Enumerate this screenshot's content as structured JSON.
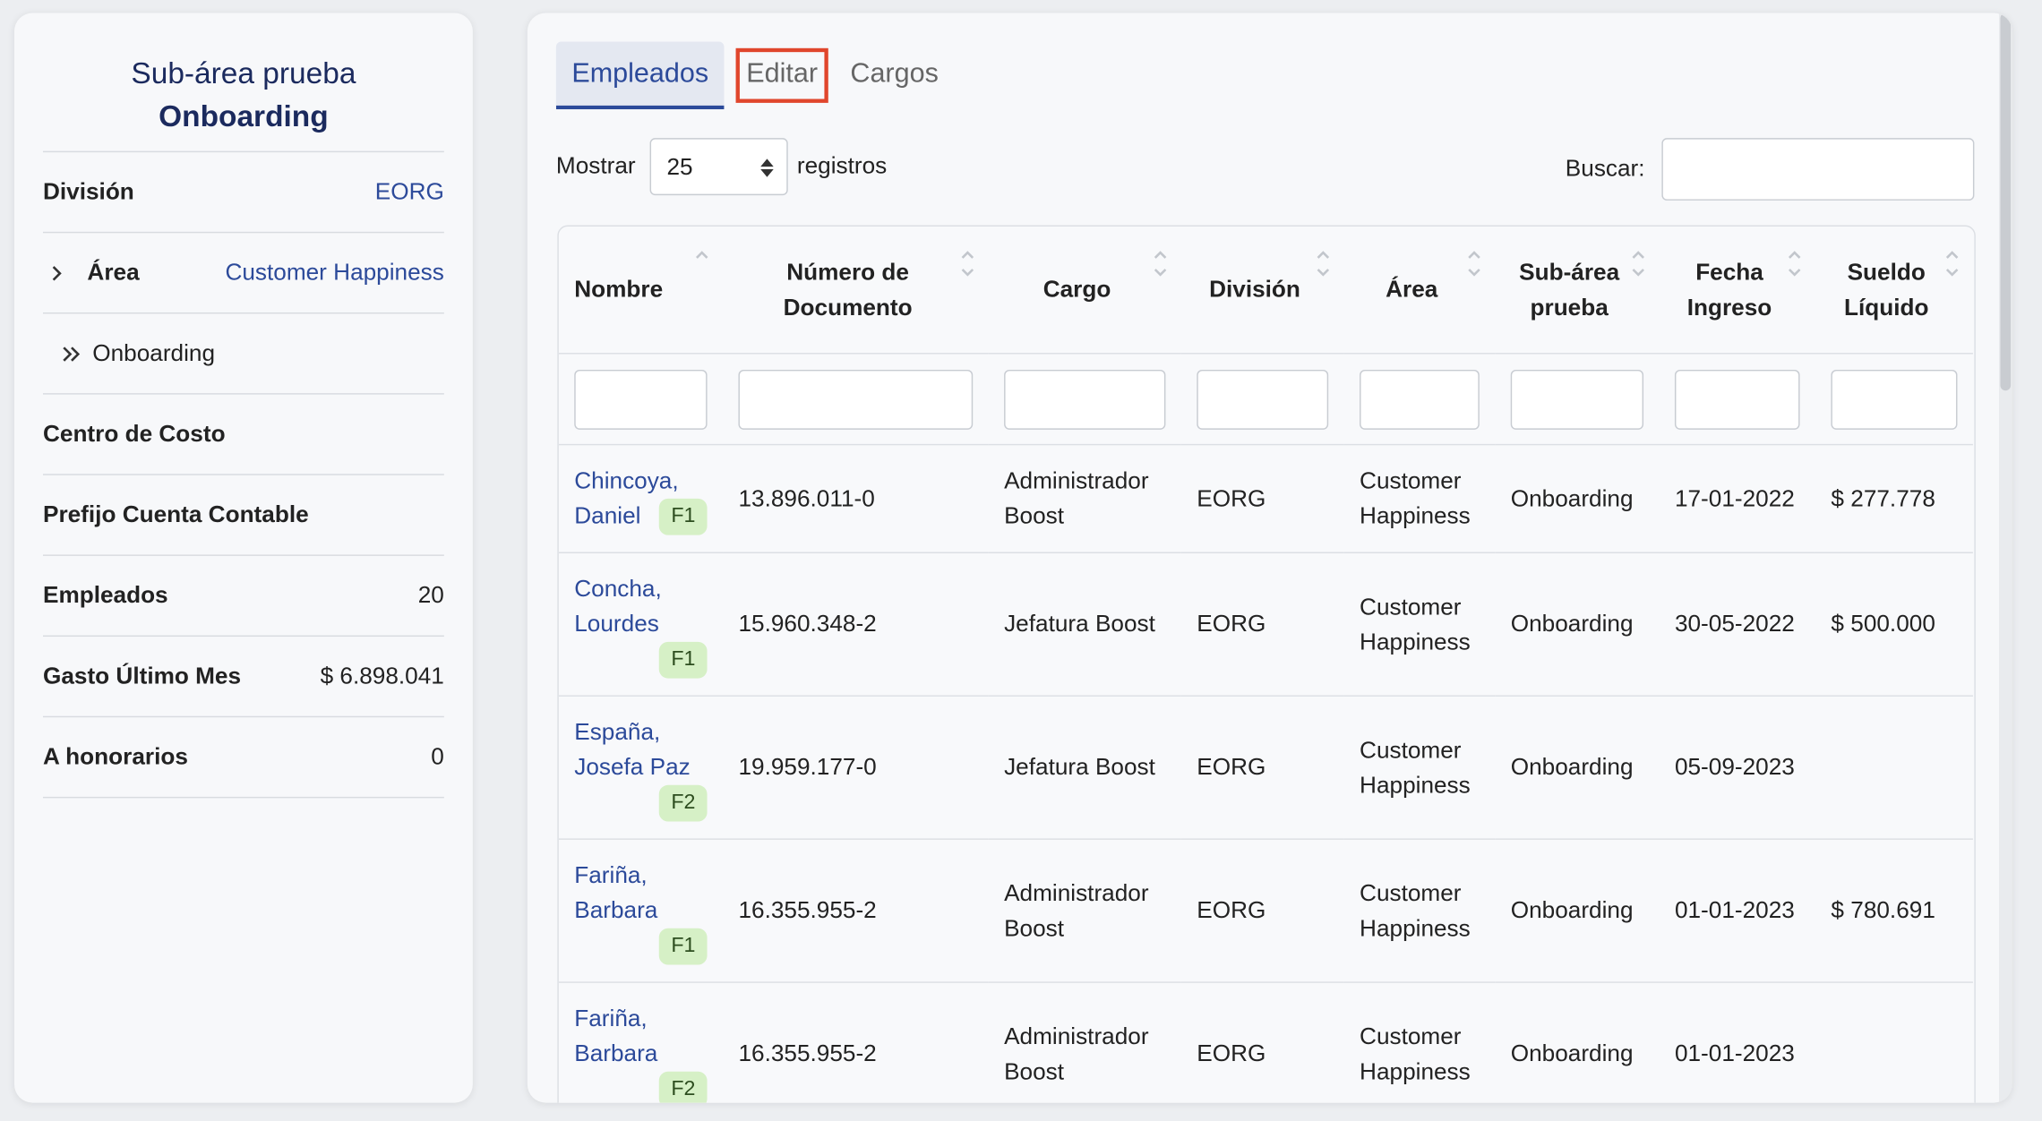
{
  "sidebar": {
    "title": "Sub-área prueba",
    "subtitle": "Onboarding",
    "rows": [
      {
        "label": "División",
        "value": "EORG"
      },
      {
        "label": "Área",
        "value": "Customer Happiness"
      },
      {
        "label": "Onboarding"
      },
      {
        "label": "Centro de Costo"
      },
      {
        "label": "Prefijo Cuenta Contable"
      },
      {
        "label": "Empleados",
        "value": "20"
      },
      {
        "label": "Gasto Último Mes",
        "value": "$ 6.898.041"
      },
      {
        "label": "A honorarios",
        "value": "0"
      }
    ]
  },
  "tabs": [
    "Empleados",
    "Editar",
    "Cargos"
  ],
  "controls": {
    "show_label": "Mostrar",
    "show_value": "25",
    "show_suffix": "registros",
    "search_label": "Buscar:"
  },
  "table": {
    "headers": [
      "Nombre",
      "Número de Documento",
      "Cargo",
      "División",
      "Área",
      "Sub-área prueba",
      "Fecha Ingreso",
      "Sueldo Líquido"
    ],
    "rows": [
      {
        "name": "Chincoya, Daniel",
        "badge": "F1",
        "cells": [
          "13.896.011-0",
          "Administrador Boost",
          "EORG",
          "Customer Happiness",
          "Onboarding",
          "17-01-2022",
          "$ 277.778"
        ]
      },
      {
        "name": "Concha, Lourdes",
        "badge": "F1",
        "cells": [
          "15.960.348-2",
          "Jefatura Boost",
          "EORG",
          "Customer Happiness",
          "Onboarding",
          "30-05-2022",
          "$ 500.000"
        ]
      },
      {
        "name": "España, Josefa Paz",
        "badge": "F2",
        "cells": [
          "19.959.177-0",
          "Jefatura Boost",
          "EORG",
          "Customer Happiness",
          "Onboarding",
          "05-09-2023",
          null
        ]
      },
      {
        "name": "Fariña, Barbara",
        "badge": "F1",
        "cells": [
          "16.355.955-2",
          "Administrador Boost",
          "EORG",
          "Customer Happiness",
          "Onboarding",
          "01-01-2023",
          "$ 780.691"
        ]
      },
      {
        "name": "Fariña, Barbara",
        "badge": "F2",
        "cells": [
          "16.355.955-2",
          "Administrador Boost",
          "EORG",
          "Customer Happiness",
          "Onboarding",
          "01-01-2023",
          null
        ]
      }
    ]
  }
}
